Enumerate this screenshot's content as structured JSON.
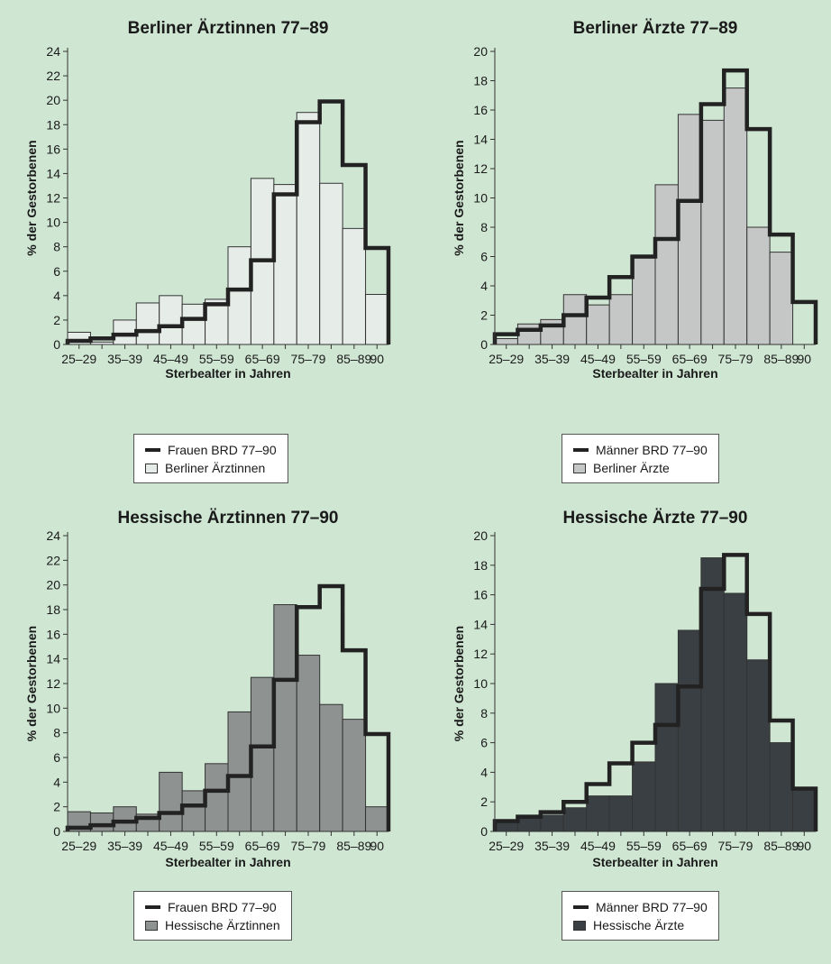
{
  "colors": {
    "background": "#cfe6d3",
    "reference_line": "#222222",
    "bar_outline": "#333333"
  },
  "chart_data": [
    {
      "type": "bar",
      "title": "Berliner Ärztinnen 77–89",
      "xlabel": "Sterbealter in Jahren",
      "ylabel": "% der Gestorbenen",
      "categories": [
        "25–29",
        "30–34",
        "35–39",
        "40–44",
        "45–49",
        "50–54",
        "55–59",
        "60–64",
        "65–69",
        "70–74",
        "75–79",
        "80–84",
        "85–89",
        "90"
      ],
      "x_tick_labels": [
        "25–29",
        "35–39",
        "45–49",
        "55–59",
        "65–69",
        "75–79",
        "85–89",
        "90"
      ],
      "y_ticks": [
        "0",
        "2",
        "4",
        "6",
        "8",
        "10",
        "12",
        "14",
        "16",
        "18",
        "20",
        "22",
        "24"
      ],
      "ylim": [
        0,
        24
      ],
      "bar_color": "#e6ece8",
      "series": [
        {
          "name": "Berliner Ärztinnen",
          "kind": "bars",
          "values": [
            1.0,
            0.2,
            2.0,
            3.4,
            4.0,
            3.3,
            3.7,
            8.0,
            13.6,
            13.1,
            19.0,
            13.2,
            9.5,
            4.1
          ]
        },
        {
          "name": "Frauen BRD 77–90",
          "kind": "step",
          "values": [
            0.3,
            0.5,
            0.8,
            1.1,
            1.5,
            2.1,
            3.3,
            4.5,
            6.9,
            12.3,
            18.2,
            19.9,
            14.7,
            7.9
          ]
        }
      ],
      "legend": [
        {
          "label": "Frauen BRD 77–90",
          "kind": "line"
        },
        {
          "label": "Berliner Ärztinnen",
          "kind": "swatch"
        }
      ]
    },
    {
      "type": "bar",
      "title": "Berliner Ärzte 77–89",
      "xlabel": "Sterbealter in Jahren",
      "ylabel": "% der Gestorbenen",
      "categories": [
        "25–29",
        "30–34",
        "35–39",
        "40–44",
        "45–49",
        "50–54",
        "55–59",
        "60–64",
        "65–69",
        "70–74",
        "75–79",
        "80–84",
        "85–89",
        "90"
      ],
      "x_tick_labels": [
        "25–29",
        "35–39",
        "45–49",
        "55–59",
        "65–69",
        "75–79",
        "85–89",
        "90"
      ],
      "y_ticks": [
        "0",
        "2",
        "4",
        "6",
        "8",
        "10",
        "12",
        "14",
        "16",
        "18",
        "20"
      ],
      "ylim": [
        0,
        20
      ],
      "bar_color": "#c4c7c6",
      "series": [
        {
          "name": "Berliner Ärzte",
          "kind": "bars",
          "values": [
            0.4,
            1.4,
            1.7,
            3.4,
            2.7,
            3.4,
            5.9,
            10.9,
            15.7,
            15.3,
            17.5,
            8.0,
            6.3,
            0
          ]
        },
        {
          "name": "Männer BRD 77–90",
          "kind": "step",
          "values": [
            0.7,
            1.0,
            1.3,
            2.0,
            3.2,
            4.6,
            6.0,
            7.2,
            9.8,
            16.4,
            18.7,
            14.7,
            7.5,
            2.9
          ]
        }
      ],
      "legend": [
        {
          "label": "Männer BRD 77–90",
          "kind": "line"
        },
        {
          "label": "Berliner Ärzte",
          "kind": "swatch"
        }
      ]
    },
    {
      "type": "bar",
      "title": "Hessische Ärztinnen 77–90",
      "xlabel": "Sterbealter in Jahren",
      "ylabel": "% der Gestorbenen",
      "categories": [
        "25–29",
        "30–34",
        "35–39",
        "40–44",
        "45–49",
        "50–54",
        "55–59",
        "60–64",
        "65–69",
        "70–74",
        "75–79",
        "80–84",
        "85–89",
        "90"
      ],
      "x_tick_labels": [
        "25–29",
        "35–39",
        "45–49",
        "55–59",
        "65–69",
        "75–79",
        "85–89",
        "90"
      ],
      "y_ticks": [
        "0",
        "2",
        "4",
        "6",
        "8",
        "10",
        "12",
        "14",
        "16",
        "18",
        "20",
        "22",
        "24"
      ],
      "ylim": [
        0,
        24
      ],
      "bar_color": "#8e9291",
      "series": [
        {
          "name": "Hessische Ärztinnen",
          "kind": "bars",
          "values": [
            1.6,
            1.5,
            2.0,
            1.4,
            4.8,
            3.3,
            5.5,
            9.7,
            12.5,
            18.4,
            14.3,
            10.3,
            9.1,
            2.0
          ]
        },
        {
          "name": "Frauen BRD 77–90",
          "kind": "step",
          "values": [
            0.3,
            0.5,
            0.8,
            1.1,
            1.5,
            2.1,
            3.3,
            4.5,
            6.9,
            12.3,
            18.2,
            19.9,
            14.7,
            7.9
          ]
        }
      ],
      "legend": [
        {
          "label": "Frauen BRD 77–90",
          "kind": "line"
        },
        {
          "label": "Hessische Ärztinnen",
          "kind": "swatch"
        }
      ]
    },
    {
      "type": "bar",
      "title": "Hessische Ärzte 77–90",
      "xlabel": "Sterbealter in Jahren",
      "ylabel": "% der Gestorbenen",
      "categories": [
        "25–29",
        "30–34",
        "35–39",
        "40–44",
        "45–49",
        "50–54",
        "55–59",
        "60–64",
        "65–69",
        "70–74",
        "75–79",
        "80–84",
        "85–89",
        "90"
      ],
      "x_tick_labels": [
        "25–29",
        "35–39",
        "45–49",
        "55–59",
        "65–69",
        "75–79",
        "85–89",
        "90"
      ],
      "y_ticks": [
        "0",
        "2",
        "4",
        "6",
        "8",
        "10",
        "12",
        "14",
        "16",
        "18",
        "20"
      ],
      "ylim": [
        0,
        20
      ],
      "bar_color": "#3a3f43",
      "series": [
        {
          "name": "Hessische Ärzte",
          "kind": "bars",
          "values": [
            0.6,
            0.9,
            1.1,
            1.6,
            2.4,
            2.4,
            4.7,
            10.0,
            13.6,
            18.5,
            16.1,
            11.6,
            6.0,
            2.8
          ]
        },
        {
          "name": "Männer BRD 77–90",
          "kind": "step",
          "values": [
            0.7,
            1.0,
            1.3,
            2.0,
            3.2,
            4.6,
            6.0,
            7.2,
            9.8,
            16.4,
            18.7,
            14.7,
            7.5,
            2.9
          ]
        }
      ],
      "legend": [
        {
          "label": "Männer BRD 77–90",
          "kind": "line"
        },
        {
          "label": "Hessische Ärzte",
          "kind": "swatch"
        }
      ]
    }
  ]
}
